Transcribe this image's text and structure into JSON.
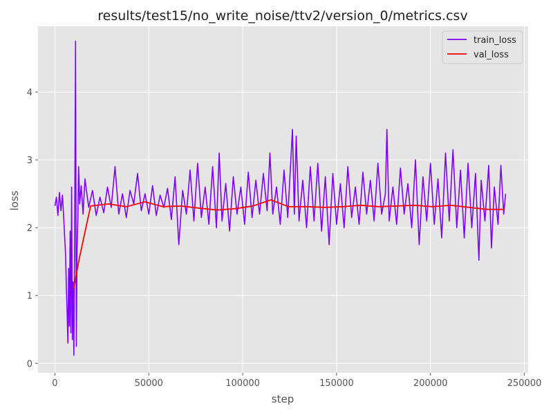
{
  "chart_data": {
    "type": "line",
    "title": "results/test15/no_write_noise/ttv2/version_0/metrics.csv",
    "xlabel": "step",
    "ylabel": "loss",
    "xlim": [
      -9000,
      252000
    ],
    "ylim": [
      -0.14,
      4.97
    ],
    "xticks": [
      0,
      50000,
      100000,
      150000,
      200000,
      250000
    ],
    "yticks": [
      0,
      1,
      2,
      3,
      4
    ],
    "grid": true,
    "legend_position": "top-right",
    "series": [
      {
        "name": "train_loss",
        "color": "#7f00ff",
        "points": [
          [
            0,
            2.32
          ],
          [
            800,
            2.45
          ],
          [
            1600,
            2.18
          ],
          [
            2400,
            2.52
          ],
          [
            3200,
            2.25
          ],
          [
            4000,
            2.48
          ],
          [
            4600,
            2.2
          ],
          [
            5200,
            1.85
          ],
          [
            5700,
            1.6
          ],
          [
            6100,
            1.1
          ],
          [
            6500,
            0.75
          ],
          [
            6900,
            0.3
          ],
          [
            7300,
            1.4
          ],
          [
            7700,
            0.55
          ],
          [
            8100,
            1.95
          ],
          [
            8500,
            0.45
          ],
          [
            8900,
            2.6
          ],
          [
            9300,
            0.35
          ],
          [
            9700,
            1.2
          ],
          [
            10100,
            0.12
          ],
          [
            10500,
            1.9
          ],
          [
            11000,
            4.75
          ],
          [
            11400,
            0.25
          ],
          [
            11800,
            1.7
          ],
          [
            12200,
            2.1
          ],
          [
            12600,
            2.9
          ],
          [
            13200,
            2.35
          ],
          [
            14000,
            2.62
          ],
          [
            15000,
            2.2
          ],
          [
            16000,
            2.72
          ],
          [
            18000,
            2.3
          ],
          [
            20000,
            2.55
          ],
          [
            22000,
            2.18
          ],
          [
            24000,
            2.45
          ],
          [
            26000,
            2.22
          ],
          [
            28000,
            2.6
          ],
          [
            30000,
            2.3
          ],
          [
            32000,
            2.9
          ],
          [
            34000,
            2.2
          ],
          [
            36000,
            2.5
          ],
          [
            38000,
            2.15
          ],
          [
            40000,
            2.55
          ],
          [
            42000,
            2.35
          ],
          [
            44000,
            2.8
          ],
          [
            46000,
            2.25
          ],
          [
            48000,
            2.5
          ],
          [
            50000,
            2.2
          ],
          [
            52000,
            2.62
          ],
          [
            54000,
            2.18
          ],
          [
            56000,
            2.48
          ],
          [
            58000,
            2.3
          ],
          [
            60000,
            2.58
          ],
          [
            62000,
            2.12
          ],
          [
            64000,
            2.75
          ],
          [
            66000,
            1.75
          ],
          [
            68000,
            2.55
          ],
          [
            70000,
            2.2
          ],
          [
            72000,
            2.85
          ],
          [
            74000,
            2.1
          ],
          [
            76000,
            2.95
          ],
          [
            78000,
            2.15
          ],
          [
            80000,
            2.6
          ],
          [
            82000,
            2.05
          ],
          [
            84000,
            2.9
          ],
          [
            86000,
            2.0
          ],
          [
            87500,
            3.1
          ],
          [
            89000,
            2.1
          ],
          [
            91000,
            2.65
          ],
          [
            93000,
            1.95
          ],
          [
            95000,
            2.75
          ],
          [
            97000,
            2.2
          ],
          [
            99000,
            2.6
          ],
          [
            101000,
            2.05
          ],
          [
            103000,
            2.82
          ],
          [
            105000,
            2.15
          ],
          [
            107000,
            2.7
          ],
          [
            109000,
            2.2
          ],
          [
            111000,
            2.8
          ],
          [
            113000,
            2.25
          ],
          [
            114500,
            3.1
          ],
          [
            116000,
            2.2
          ],
          [
            118000,
            2.6
          ],
          [
            120000,
            2.05
          ],
          [
            122000,
            2.85
          ],
          [
            124000,
            2.15
          ],
          [
            126500,
            3.45
          ],
          [
            127500,
            2.2
          ],
          [
            128500,
            3.35
          ],
          [
            130000,
            2.1
          ],
          [
            132000,
            2.7
          ],
          [
            134000,
            2.0
          ],
          [
            136000,
            2.9
          ],
          [
            138000,
            2.1
          ],
          [
            140000,
            2.95
          ],
          [
            142000,
            1.95
          ],
          [
            144000,
            2.75
          ],
          [
            146000,
            1.75
          ],
          [
            148000,
            2.8
          ],
          [
            150000,
            2.05
          ],
          [
            152000,
            2.65
          ],
          [
            154000,
            2.0
          ],
          [
            156000,
            2.9
          ],
          [
            158000,
            2.15
          ],
          [
            160000,
            2.6
          ],
          [
            162000,
            2.05
          ],
          [
            164000,
            2.82
          ],
          [
            166000,
            2.2
          ],
          [
            168000,
            2.7
          ],
          [
            170000,
            2.1
          ],
          [
            172000,
            2.95
          ],
          [
            174000,
            2.2
          ],
          [
            176000,
            2.5
          ],
          [
            176800,
            3.45
          ],
          [
            178000,
            2.1
          ],
          [
            180000,
            2.6
          ],
          [
            182000,
            2.05
          ],
          [
            184000,
            2.88
          ],
          [
            186000,
            2.2
          ],
          [
            188000,
            2.65
          ],
          [
            190000,
            2.0
          ],
          [
            192000,
            3.0
          ],
          [
            194000,
            1.75
          ],
          [
            196000,
            2.75
          ],
          [
            198000,
            2.1
          ],
          [
            200000,
            2.95
          ],
          [
            202000,
            2.05
          ],
          [
            204000,
            2.72
          ],
          [
            206000,
            1.85
          ],
          [
            208000,
            3.1
          ],
          [
            210000,
            2.1
          ],
          [
            212000,
            3.15
          ],
          [
            214000,
            2.0
          ],
          [
            216000,
            2.85
          ],
          [
            218000,
            1.85
          ],
          [
            220000,
            2.95
          ],
          [
            222000,
            2.0
          ],
          [
            224000,
            2.8
          ],
          [
            225800,
            1.52
          ],
          [
            227000,
            2.7
          ],
          [
            229000,
            2.1
          ],
          [
            231000,
            2.92
          ],
          [
            232500,
            1.7
          ],
          [
            234000,
            2.6
          ],
          [
            236000,
            2.05
          ],
          [
            237500,
            2.92
          ],
          [
            239000,
            2.2
          ],
          [
            240000,
            2.5
          ]
        ]
      },
      {
        "name": "val_loss",
        "color": "#ff0000",
        "points": [
          [
            10000,
            1.1
          ],
          [
            13000,
            1.55
          ],
          [
            16500,
            2.0
          ],
          [
            19000,
            2.32
          ],
          [
            28500,
            2.35
          ],
          [
            38000,
            2.31
          ],
          [
            48000,
            2.38
          ],
          [
            57500,
            2.31
          ],
          [
            67000,
            2.32
          ],
          [
            76500,
            2.29
          ],
          [
            86500,
            2.26
          ],
          [
            96000,
            2.28
          ],
          [
            105500,
            2.32
          ],
          [
            115000,
            2.41
          ],
          [
            124500,
            2.31
          ],
          [
            134000,
            2.31
          ],
          [
            144000,
            2.3
          ],
          [
            153500,
            2.31
          ],
          [
            163000,
            2.33
          ],
          [
            172500,
            2.31
          ],
          [
            182000,
            2.32
          ],
          [
            191500,
            2.33
          ],
          [
            201000,
            2.31
          ],
          [
            211000,
            2.33
          ],
          [
            220500,
            2.3
          ],
          [
            230000,
            2.27
          ],
          [
            239500,
            2.27
          ]
        ]
      }
    ]
  }
}
